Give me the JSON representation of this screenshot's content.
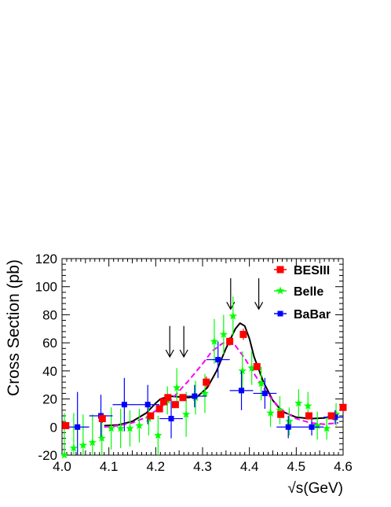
{
  "chart_data": {
    "type": "scatter",
    "title": "",
    "xlabel_prefix": "√s",
    "xlabel_unit": "(GeV)",
    "ylabel": "Cross Section (pb)",
    "xlim": [
      4.0,
      4.6
    ],
    "ylim": [
      -20,
      120
    ],
    "x_ticks": [
      "4.0",
      "4.1",
      "4.2",
      "4.3",
      "4.4",
      "4.5",
      "4.6"
    ],
    "y_ticks": [
      "-20",
      "0",
      "20",
      "40",
      "60",
      "80",
      "100",
      "120"
    ],
    "legend_position": "top-right",
    "series": [
      {
        "name": "BESIII",
        "marker": "square",
        "color": "#ff0000",
        "points": [
          {
            "x": 4.008,
            "y": 1,
            "ey": 2
          },
          {
            "x": 4.086,
            "y": 6,
            "ey": 3
          },
          {
            "x": 4.189,
            "y": 8,
            "ey": 2
          },
          {
            "x": 4.208,
            "y": 13,
            "ey": 2
          },
          {
            "x": 4.217,
            "y": 18,
            "ey": 2
          },
          {
            "x": 4.226,
            "y": 21,
            "ey": 1.5
          },
          {
            "x": 4.242,
            "y": 16,
            "ey": 2
          },
          {
            "x": 4.258,
            "y": 21,
            "ey": 1.5
          },
          {
            "x": 4.308,
            "y": 32,
            "ey": 4
          },
          {
            "x": 4.358,
            "y": 61,
            "ey": 3
          },
          {
            "x": 4.387,
            "y": 66,
            "ey": 4
          },
          {
            "x": 4.416,
            "y": 43,
            "ey": 2
          },
          {
            "x": 4.467,
            "y": 9,
            "ey": 2
          },
          {
            "x": 4.527,
            "y": 8,
            "ey": 2
          },
          {
            "x": 4.575,
            "y": 8,
            "ey": 2
          },
          {
            "x": 4.6,
            "y": 14,
            "ey": 2
          }
        ]
      },
      {
        "name": "Belle",
        "marker": "star",
        "color": "#00ff00",
        "points": [
          {
            "x": 4.005,
            "y": -20,
            "ey": 30
          },
          {
            "x": 4.025,
            "y": -15,
            "ey": 25
          },
          {
            "x": 4.045,
            "y": -13,
            "ey": 22
          },
          {
            "x": 4.065,
            "y": -11,
            "ey": 20
          },
          {
            "x": 4.085,
            "y": -8,
            "ey": 18
          },
          {
            "x": 4.105,
            "y": -1,
            "ey": 15
          },
          {
            "x": 4.125,
            "y": -1,
            "ey": 14
          },
          {
            "x": 4.145,
            "y": -1,
            "ey": 13
          },
          {
            "x": 4.165,
            "y": 1,
            "ey": 12
          },
          {
            "x": 4.185,
            "y": 6,
            "ey": 12
          },
          {
            "x": 4.205,
            "y": -6,
            "ey": 14
          },
          {
            "x": 4.225,
            "y": 19,
            "ey": 10
          },
          {
            "x": 4.245,
            "y": 28,
            "ey": 14
          },
          {
            "x": 4.265,
            "y": 9,
            "ey": 16
          },
          {
            "x": 4.285,
            "y": 21,
            "ey": 12
          },
          {
            "x": 4.305,
            "y": 24,
            "ey": 14
          },
          {
            "x": 4.325,
            "y": 61,
            "ey": 16
          },
          {
            "x": 4.345,
            "y": 66,
            "ey": 14
          },
          {
            "x": 4.365,
            "y": 79,
            "ey": 14
          },
          {
            "x": 4.385,
            "y": 40,
            "ey": 14
          },
          {
            "x": 4.405,
            "y": 42,
            "ey": 12
          },
          {
            "x": 4.425,
            "y": 31,
            "ey": 12
          },
          {
            "x": 4.445,
            "y": 10,
            "ey": 10
          },
          {
            "x": 4.465,
            "y": 12,
            "ey": 10
          },
          {
            "x": 4.485,
            "y": 4,
            "ey": 10
          },
          {
            "x": 4.505,
            "y": 17,
            "ey": 10
          },
          {
            "x": 4.525,
            "y": 15,
            "ey": 10
          },
          {
            "x": 4.545,
            "y": 1,
            "ey": 10
          },
          {
            "x": 4.565,
            "y": -1,
            "ey": 8
          },
          {
            "x": 4.585,
            "y": 9,
            "ey": 8
          }
        ]
      },
      {
        "name": "BaBar",
        "marker": "square",
        "color": "#0000ff",
        "points": [
          {
            "x": 4.033,
            "y": 0,
            "ex": 0.025,
            "ey": 25
          },
          {
            "x": 4.083,
            "y": 8,
            "ex": 0.025,
            "ey": 15
          },
          {
            "x": 4.133,
            "y": 16,
            "ex": 0.025,
            "ey": 19
          },
          {
            "x": 4.183,
            "y": 16,
            "ex": 0.025,
            "ey": 14
          },
          {
            "x": 4.233,
            "y": 6,
            "ex": 0.025,
            "ey": 14
          },
          {
            "x": 4.283,
            "y": 22,
            "ex": 0.025,
            "ey": 8
          },
          {
            "x": 4.333,
            "y": 48,
            "ex": 0.025,
            "ey": 13
          },
          {
            "x": 4.383,
            "y": 26,
            "ex": 0.025,
            "ey": 14
          },
          {
            "x": 4.433,
            "y": 24,
            "ex": 0.025,
            "ey": 11
          },
          {
            "x": 4.483,
            "y": 0,
            "ex": 0.025,
            "ey": 8
          },
          {
            "x": 4.533,
            "y": 0,
            "ex": 0.025,
            "ey": 6
          },
          {
            "x": 4.583,
            "y": 7,
            "ex": 0.025,
            "ey": 5
          }
        ]
      }
    ],
    "fit_curves": [
      {
        "style": "solid",
        "color": "#000000",
        "points": [
          [
            4.09,
            1
          ],
          [
            4.12,
            1.5
          ],
          [
            4.15,
            4
          ],
          [
            4.18,
            10
          ],
          [
            4.2,
            17
          ],
          [
            4.21,
            20
          ],
          [
            4.23,
            22
          ],
          [
            4.25,
            21.5
          ],
          [
            4.27,
            21
          ],
          [
            4.29,
            22
          ],
          [
            4.31,
            28
          ],
          [
            4.33,
            40
          ],
          [
            4.35,
            56
          ],
          [
            4.37,
            70
          ],
          [
            4.38,
            74
          ],
          [
            4.39,
            72
          ],
          [
            4.4,
            63
          ],
          [
            4.41,
            50
          ],
          [
            4.43,
            32
          ],
          [
            4.45,
            19
          ],
          [
            4.47,
            11
          ],
          [
            4.5,
            7
          ],
          [
            4.53,
            6
          ],
          [
            4.56,
            6.5
          ],
          [
            4.59,
            9
          ]
        ]
      },
      {
        "style": "dashed",
        "color": "#ff00ff",
        "points": [
          [
            4.09,
            0
          ],
          [
            4.12,
            1
          ],
          [
            4.15,
            3
          ],
          [
            4.18,
            7
          ],
          [
            4.21,
            14
          ],
          [
            4.24,
            22
          ],
          [
            4.27,
            33
          ],
          [
            4.3,
            45
          ],
          [
            4.32,
            54
          ],
          [
            4.34,
            59
          ],
          [
            4.35,
            61
          ],
          [
            4.37,
            58
          ],
          [
            4.39,
            49
          ],
          [
            4.41,
            38
          ],
          [
            4.43,
            28
          ],
          [
            4.45,
            19
          ],
          [
            4.47,
            12
          ],
          [
            4.5,
            6
          ],
          [
            4.53,
            3
          ],
          [
            4.56,
            2
          ],
          [
            4.59,
            3
          ]
        ]
      }
    ],
    "arrows": [
      {
        "x": 4.23,
        "y_top": 72,
        "y_tip": 50
      },
      {
        "x": 4.26,
        "y_top": 72,
        "y_tip": 50
      },
      {
        "x": 4.36,
        "y_top": 106,
        "y_tip": 84
      },
      {
        "x": 4.42,
        "y_top": 106,
        "y_tip": 84
      }
    ]
  }
}
